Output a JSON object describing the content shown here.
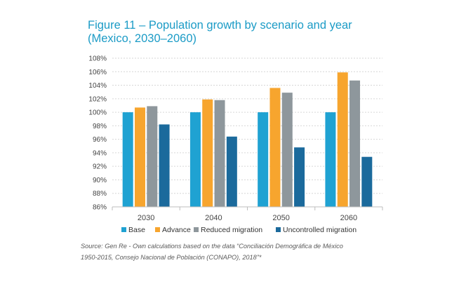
{
  "title": {
    "line1": "Figure 11 – Population growth by scenario and year",
    "line2": "(Mexico, 2030–2060)"
  },
  "source": {
    "line1": "Source: Gen Re - Own calculations based on the data “Conciliación Demográfica de México",
    "line2": "1950-2015, Consejo Nacional de Población (CONAPO), 2018”*"
  },
  "chart_data": {
    "type": "bar",
    "categories": [
      "2030",
      "2040",
      "2050",
      "2060"
    ],
    "series": [
      {
        "name": "Base",
        "color": "#1fa2d2",
        "values": [
          100,
          100,
          100,
          100
        ]
      },
      {
        "name": "Advance",
        "color": "#f7a52e",
        "values": [
          100.7,
          101.9,
          103.6,
          105.9
        ]
      },
      {
        "name": "Reduced migration",
        "color": "#8e979c",
        "values": [
          100.9,
          101.8,
          102.9,
          104.7
        ]
      },
      {
        "name": "Uncontrolled migration",
        "color": "#1b6a9c",
        "values": [
          98.2,
          96.4,
          94.8,
          93.4
        ]
      }
    ],
    "ylim": [
      86,
      108
    ],
    "ytick_step": 2,
    "ytick_labels": [
      "86%",
      "88%",
      "90%",
      "92%",
      "94%",
      "96%",
      "98%",
      "100%",
      "102%",
      "104%",
      "106%",
      "108%"
    ],
    "value_suffix": "%",
    "grid": true,
    "legend_position": "bottom"
  }
}
